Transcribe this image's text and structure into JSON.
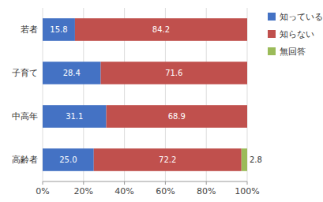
{
  "chart_data": {
    "type": "bar",
    "orientation": "horizontal",
    "stacked": true,
    "categories": [
      "若者",
      "子育て",
      "中高年",
      "高齢者"
    ],
    "series": [
      {
        "name": "知っている",
        "color": "#4472C4",
        "values": [
          15.8,
          28.4,
          31.1,
          25.0
        ],
        "value_labels": [
          "15.8",
          "28.4",
          "31.1",
          "25.0"
        ]
      },
      {
        "name": "知らない",
        "color": "#C0504D",
        "values": [
          84.2,
          71.6,
          68.9,
          72.2
        ]
      },
      {
        "name": "無回答",
        "color": "#9BBB59",
        "values": [
          0.0,
          0.0,
          0.0,
          2.8
        ]
      }
    ],
    "xlim": [
      0,
      100
    ],
    "xticks": [
      {
        "value": 0,
        "label": "0%"
      },
      {
        "value": 20,
        "label": "20%"
      },
      {
        "value": 40,
        "label": "40%"
      },
      {
        "value": 60,
        "label": "60%"
      },
      {
        "value": 80,
        "label": "80%"
      },
      {
        "value": 100,
        "label": "100%"
      }
    ],
    "grid": true,
    "legend": "right",
    "data_labels": true
  }
}
